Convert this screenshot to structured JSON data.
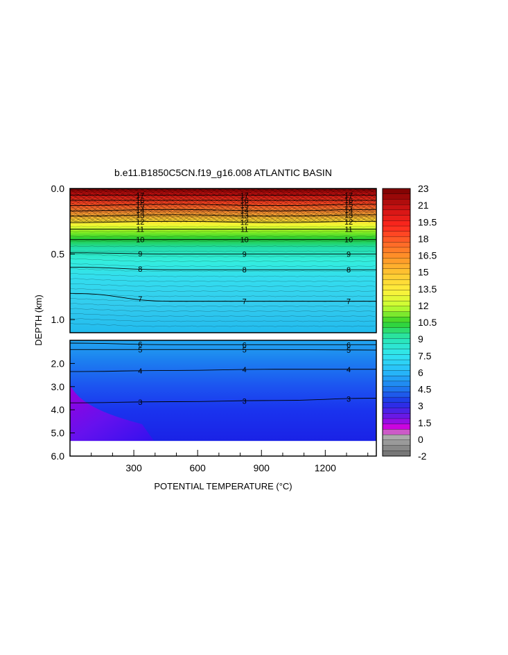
{
  "chart_data": {
    "type": "heatmap",
    "title": "b.e11.B1850C5CN.f19_g16.008 ATLANTIC BASIN",
    "xlabel": "POTENTIAL TEMPERATURE (°C)",
    "ylabel": "DEPTH (km)",
    "x_ticks": [
      "300",
      "600",
      "900",
      "1200"
    ],
    "x_tick_values": [
      300,
      600,
      900,
      1200
    ],
    "xlim": [
      0,
      1440
    ],
    "upper_panel": {
      "ylim": [
        0.0,
        1.1
      ],
      "y_ticks": [
        "0.0",
        "0.5",
        "1.0"
      ],
      "y_tick_values": [
        0.0,
        0.5,
        1.0
      ]
    },
    "lower_panel": {
      "ylim": [
        1.0,
        6.0
      ],
      "y_ticks": [
        "2.0",
        "3.0",
        "4.0",
        "5.0",
        "6.0"
      ],
      "y_tick_values": [
        2.0,
        3.0,
        4.0,
        5.0,
        6.0
      ],
      "bottom_depth_km": 5.35
    },
    "colorbar": {
      "min": -2,
      "max": 23,
      "step": 0.5,
      "tick_labels": [
        "23",
        "21",
        "19.5",
        "18",
        "16.5",
        "15",
        "13.5",
        "12",
        "10.5",
        "9",
        "7.5",
        "6",
        "4.5",
        "3",
        "1.5",
        "0",
        "-2"
      ]
    },
    "contours": [
      {
        "level": 17,
        "depths_km": [
          0.05,
          0.05,
          0.05,
          0.05
        ]
      },
      {
        "level": 16,
        "depths_km": [
          0.09,
          0.09,
          0.09,
          0.09
        ]
      },
      {
        "level": 15,
        "depths_km": [
          0.13,
          0.12,
          0.13,
          0.12
        ]
      },
      {
        "level": 14,
        "depths_km": [
          0.17,
          0.16,
          0.17,
          0.16
        ]
      },
      {
        "level": 13,
        "depths_km": [
          0.21,
          0.2,
          0.21,
          0.2
        ]
      },
      {
        "level": 12,
        "depths_km": [
          0.26,
          0.25,
          0.26,
          0.25
        ]
      },
      {
        "level": 11,
        "depths_km": [
          0.31,
          0.31,
          0.31,
          0.31
        ]
      },
      {
        "level": 10,
        "depths_km": [
          0.39,
          0.39,
          0.39,
          0.39
        ]
      },
      {
        "level": 9,
        "depths_km": [
          0.49,
          0.5,
          0.5,
          0.5
        ]
      },
      {
        "level": 8,
        "depths_km": [
          0.6,
          0.62,
          0.62,
          0.62
        ]
      },
      {
        "level": 7,
        "depths_km": [
          0.8,
          0.86,
          0.86,
          0.86
        ]
      },
      {
        "level": 6,
        "depths_km": [
          1.12,
          1.19,
          1.19,
          1.19
        ]
      },
      {
        "level": 5,
        "depths_km": [
          1.4,
          1.4,
          1.4,
          1.42
        ]
      },
      {
        "level": 4,
        "depths_km": [
          2.35,
          2.3,
          2.25,
          2.25
        ]
      },
      {
        "level": 3,
        "depths_km": [
          3.7,
          3.65,
          3.6,
          3.5
        ]
      }
    ],
    "contour_label_x": [
      330,
      820,
      1310
    ]
  }
}
